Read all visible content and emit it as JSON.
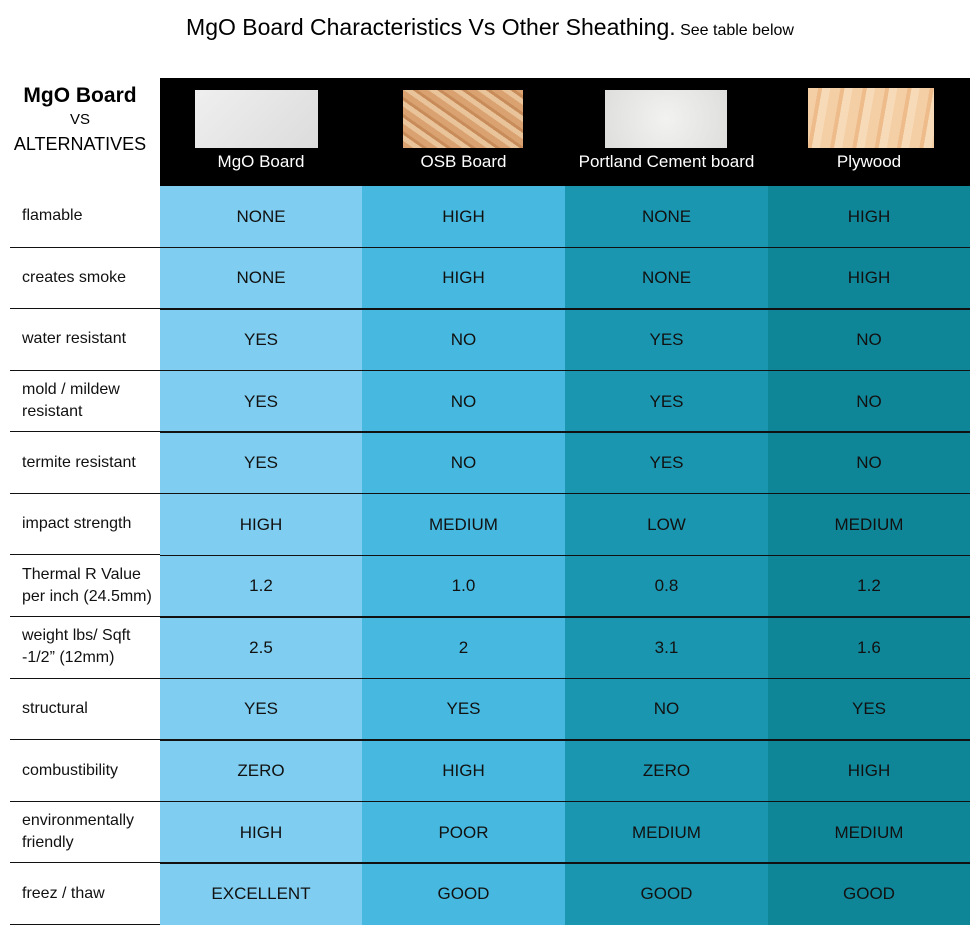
{
  "header": {
    "title": "MgO Board Characteristics Vs Other Sheathing.",
    "subtitle": "See table below"
  },
  "table": {
    "corner": [
      "MgO Board",
      "VS",
      "ALTERNATIVES"
    ],
    "columns": [
      "MgO Board",
      "OSB Board",
      "Portland Cement board",
      "Plywood"
    ],
    "rows": [
      {
        "label": [
          "flamable"
        ],
        "cells": [
          "NONE",
          "HIGH",
          "NONE",
          "HIGH"
        ]
      },
      {
        "label": [
          "creates smoke"
        ],
        "cells": [
          "NONE",
          "HIGH",
          "NONE",
          "HIGH"
        ]
      },
      {
        "label": [
          "water resistant"
        ],
        "cells": [
          "YES",
          "NO",
          "YES",
          "NO"
        ]
      },
      {
        "label": [
          "mold / mildew",
          "resistant"
        ],
        "cells": [
          "YES",
          "NO",
          "YES",
          "NO"
        ]
      },
      {
        "label": [
          "termite resistant"
        ],
        "cells": [
          "YES",
          "NO",
          "YES",
          "NO"
        ]
      },
      {
        "label": [
          "impact strength"
        ],
        "cells": [
          "HIGH",
          "MEDIUM",
          "LOW",
          "MEDIUM"
        ]
      },
      {
        "label": [
          "Thermal R Value",
          "per inch (24.5mm)"
        ],
        "cells": [
          "1.2",
          "1.0",
          "0.8",
          "1.2"
        ]
      },
      {
        "label": [
          "weight lbs/ Sqft",
          "-1/2” (12mm)"
        ],
        "cells": [
          "2.5",
          "2",
          "3.1",
          "1.6"
        ]
      },
      {
        "label": [
          "structural"
        ],
        "cells": [
          "YES",
          "YES",
          "NO",
          "YES"
        ]
      },
      {
        "label": [
          "combustibility"
        ],
        "cells": [
          "ZERO",
          "HIGH",
          "ZERO",
          "HIGH"
        ]
      },
      {
        "label": [
          "environmentally",
          "friendly"
        ],
        "cells": [
          "HIGH",
          "POOR",
          "MEDIUM",
          "MEDIUM"
        ]
      },
      {
        "label": [
          "freez / thaw"
        ],
        "cells": [
          "EXCELLENT",
          "GOOD",
          "GOOD",
          "GOOD"
        ]
      }
    ]
  }
}
